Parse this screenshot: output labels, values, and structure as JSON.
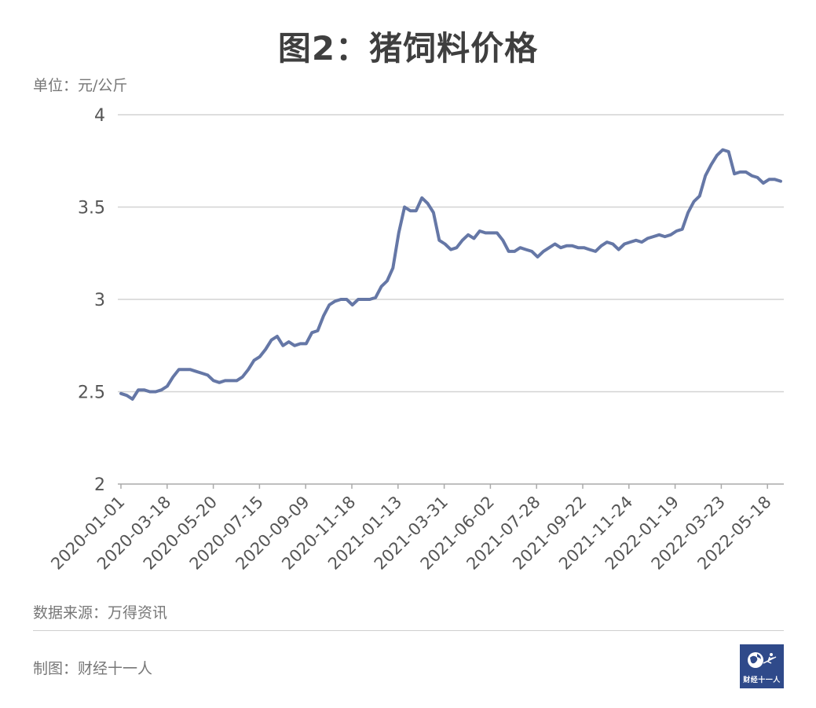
{
  "title": "图2：猪饲料价格",
  "unit_label": "单位：元/公斤",
  "source": "数据来源：万得资讯",
  "maker": "制图：财经十一人",
  "logo_text": "财经十一人",
  "colors": {
    "line": "#6577a6",
    "grid": "#d3d3d3",
    "axis": "#aaaaaa",
    "text": "#555555",
    "logo_bg": "#2f4a8a"
  },
  "chart_data": {
    "type": "line",
    "title": "图2：猪饲料价格",
    "ylabel": "单位：元/公斤",
    "ylim": [
      2,
      4
    ],
    "yticks": [
      "2",
      "2.5",
      "3",
      "3.5",
      "4"
    ],
    "xticks": [
      "2020-01-01",
      "2020-03-18",
      "2020-05-20",
      "2020-07-15",
      "2020-09-09",
      "2020-11-18",
      "2021-01-13",
      "2021-03-31",
      "2021-06-02",
      "2021-07-28",
      "2021-09-22",
      "2021-11-24",
      "2022-01-19",
      "2022-03-23",
      "2022-05-18"
    ],
    "grid": true,
    "series": [
      {
        "values": [
          2.49,
          2.48,
          2.46,
          2.51,
          2.51,
          2.5,
          2.5,
          2.51,
          2.53,
          2.58,
          2.62,
          2.62,
          2.62,
          2.61,
          2.6,
          2.59,
          2.56,
          2.55,
          2.56,
          2.56,
          2.56,
          2.58,
          2.62,
          2.67,
          2.69,
          2.73,
          2.78,
          2.8,
          2.75,
          2.77,
          2.75,
          2.76,
          2.76,
          2.82,
          2.83,
          2.91,
          2.97,
          2.99,
          3.0,
          3.0,
          2.97,
          3.0,
          3.0,
          3.0,
          3.01,
          3.07,
          3.1,
          3.17,
          3.36,
          3.5,
          3.48,
          3.48,
          3.55,
          3.52,
          3.47,
          3.32,
          3.3,
          3.27,
          3.28,
          3.32,
          3.35,
          3.33,
          3.37,
          3.36,
          3.36,
          3.36,
          3.32,
          3.26,
          3.26,
          3.28,
          3.27,
          3.26,
          3.23,
          3.26,
          3.28,
          3.3,
          3.28,
          3.29,
          3.29,
          3.28,
          3.28,
          3.27,
          3.26,
          3.29,
          3.31,
          3.3,
          3.27,
          3.3,
          3.31,
          3.32,
          3.31,
          3.33,
          3.34,
          3.35,
          3.34,
          3.35,
          3.37,
          3.38,
          3.47,
          3.53,
          3.56,
          3.67,
          3.73,
          3.78,
          3.81,
          3.8,
          3.68,
          3.69,
          3.69,
          3.67,
          3.66,
          3.63,
          3.65,
          3.65,
          3.64
        ]
      }
    ]
  }
}
